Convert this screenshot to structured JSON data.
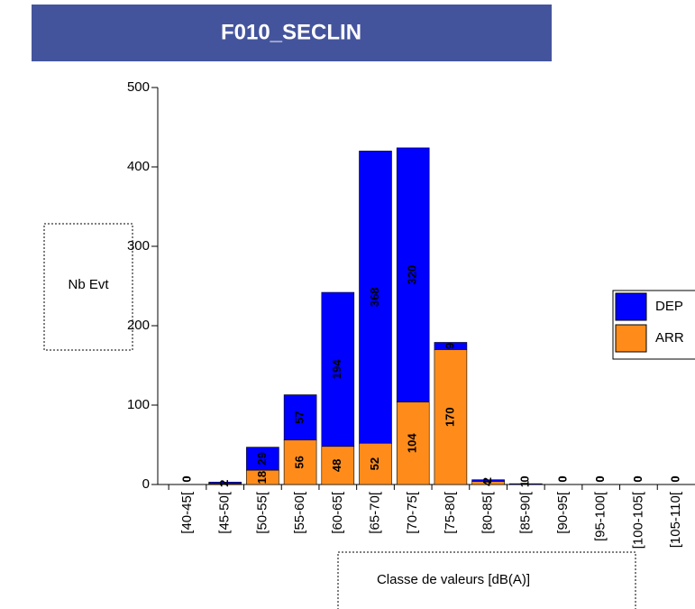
{
  "chart_data": {
    "type": "stacked_bar",
    "title": "F010_SECLIN",
    "y_label": "Nb Evt",
    "x_label": "Classe de valeurs [dB(A)]",
    "categories": [
      "[40-45[",
      "[45-50[",
      "[50-55[",
      "[55-60[",
      "[60-65[",
      "[65-70[",
      "[70-75[",
      "[75-80[",
      "[80-85[",
      "[85-90[",
      "[90-95[",
      "[95-100[",
      "[100-105[",
      "[105-110["
    ],
    "series": [
      {
        "name": "ARR",
        "color": "#ff8c1a",
        "values": [
          0,
          1,
          18,
          56,
          48,
          52,
          104,
          170,
          4,
          0,
          0,
          0,
          0,
          0
        ]
      },
      {
        "name": "DEP",
        "color": "#0000ff",
        "values": [
          0,
          2,
          29,
          57,
          194,
          368,
          320,
          9,
          2,
          1,
          0,
          0,
          0,
          0
        ]
      }
    ],
    "ylim": [
      0,
      500
    ],
    "yticks": [
      0,
      100,
      200,
      300,
      400,
      500
    ]
  }
}
